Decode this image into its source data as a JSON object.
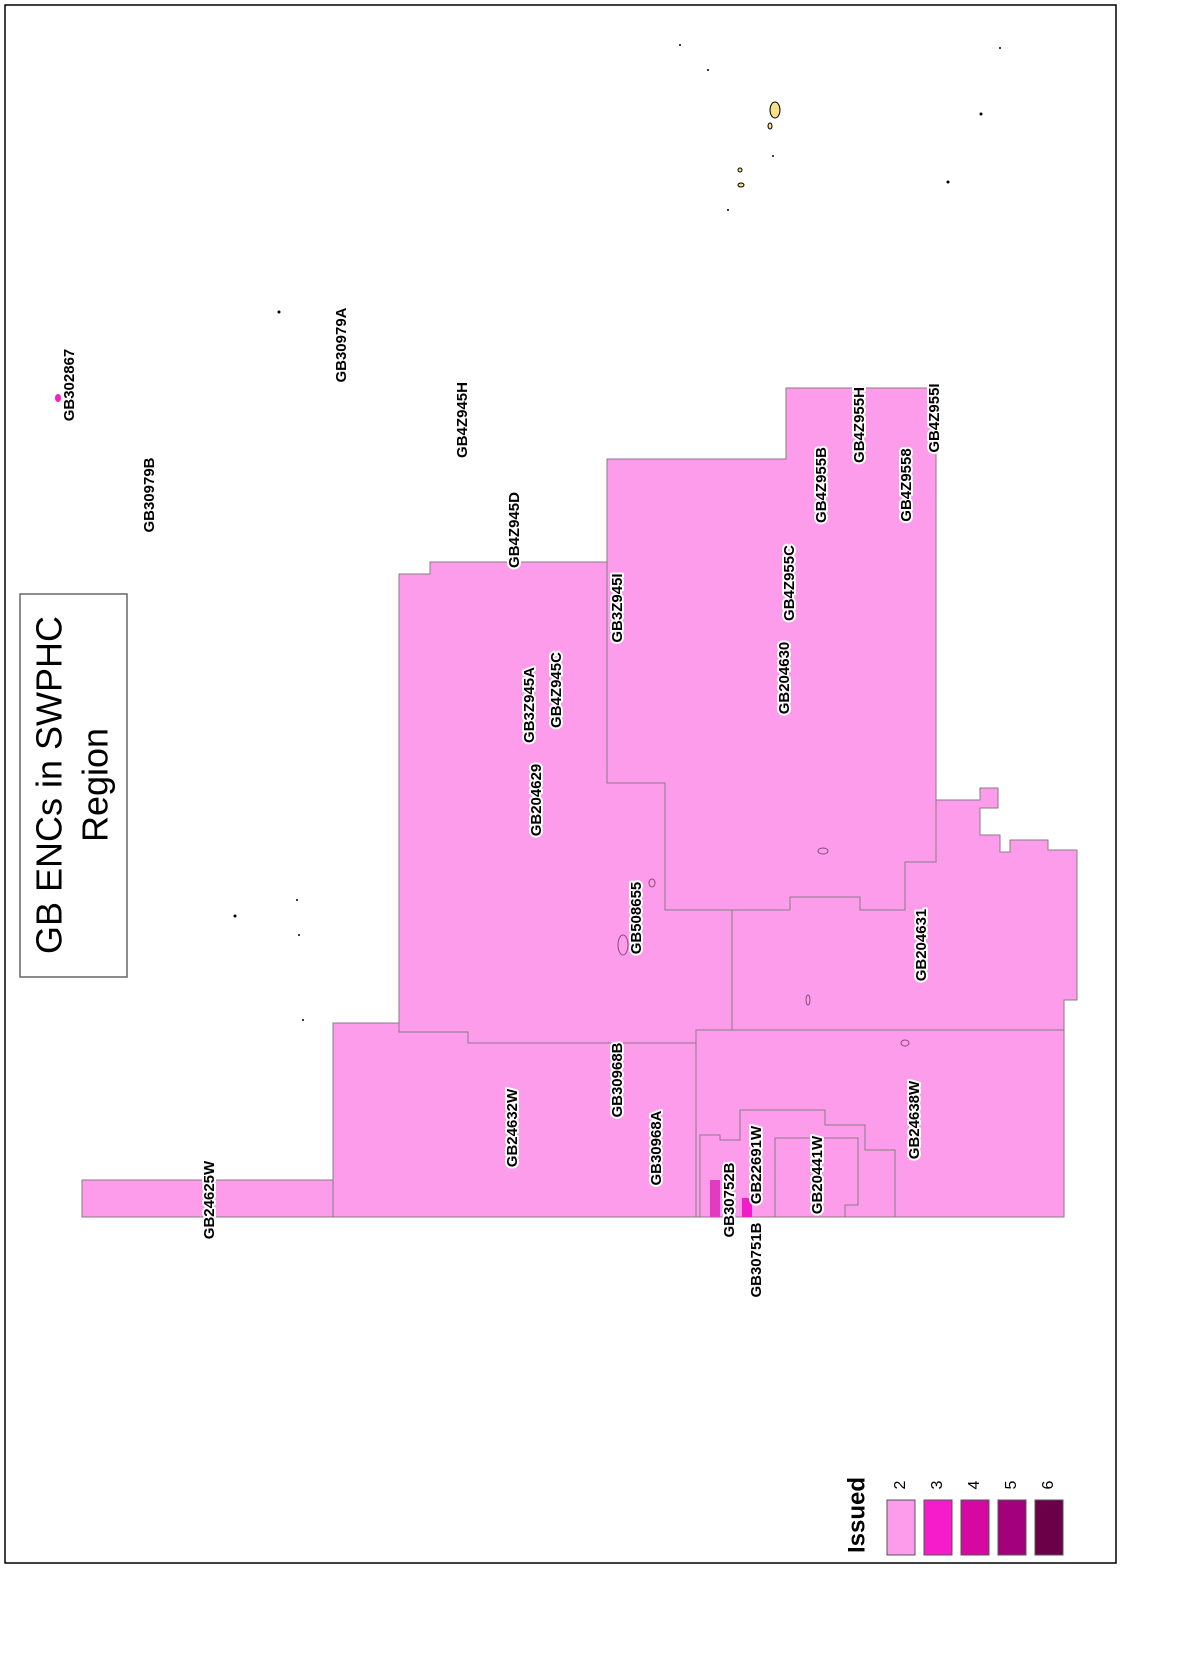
{
  "map": {
    "title_lines": [
      "GB ENCs in SWPHC",
      "Region"
    ],
    "cell_labels": [
      "GB302867",
      "GB30979B",
      "GB30979A",
      "GB4Z945H",
      "GB4Z945D",
      "GB3Z945I",
      "GB3Z945A",
      "GB4Z945C",
      "GB204629",
      "GB4Z955C",
      "GB4Z955B",
      "GB4Z955H",
      "GB4Z9558",
      "GB4Z955I",
      "GB204630",
      "GB508655",
      "GB204631",
      "GB30968B",
      "GB24632W",
      "GB30968A",
      "GB24625W",
      "GB30752B",
      "GB22691W",
      "GB30751B",
      "GB20441W",
      "GB24638W"
    ],
    "legend": {
      "title": "Issued",
      "items": [
        {
          "label": "2",
          "color": "#fc9ceb"
        },
        {
          "label": "3",
          "color": "#f51ccb"
        },
        {
          "label": "4",
          "color": "#d5089f"
        },
        {
          "label": "5",
          "color": "#a3007c"
        },
        {
          "label": "6",
          "color": "#6b0049"
        }
      ]
    }
  }
}
